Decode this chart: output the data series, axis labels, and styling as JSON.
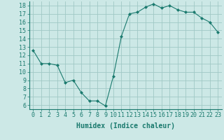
{
  "x": [
    0,
    1,
    2,
    3,
    4,
    5,
    6,
    7,
    8,
    9,
    10,
    11,
    12,
    13,
    14,
    15,
    16,
    17,
    18,
    19,
    20,
    21,
    22,
    23
  ],
  "y": [
    12.6,
    11.0,
    11.0,
    10.8,
    8.7,
    9.0,
    7.5,
    6.5,
    6.5,
    5.9,
    9.5,
    14.3,
    17.0,
    17.2,
    17.8,
    18.2,
    17.7,
    18.0,
    17.5,
    17.2,
    17.2,
    16.5,
    16.0,
    14.8
  ],
  "line_color": "#1a7a6e",
  "marker": "D",
  "marker_size": 2,
  "bg_color": "#cce8e6",
  "grid_color": "#a0c8c5",
  "tick_color": "#1a7a6e",
  "xlabel": "Humidex (Indice chaleur)",
  "ylim": [
    5.5,
    18.5
  ],
  "yticks": [
    6,
    7,
    8,
    9,
    10,
    11,
    12,
    13,
    14,
    15,
    16,
    17,
    18
  ],
  "xlabel_fontsize": 7,
  "tick_fontsize": 6
}
